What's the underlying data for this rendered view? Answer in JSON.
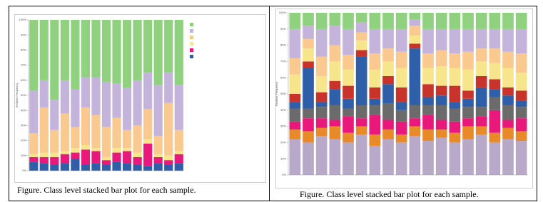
{
  "figure_captions": [
    "Figure. Class level stacked bar plot for each sample.",
    "Figure. Class level stacked bar plot for each sample."
  ],
  "chart_data": [
    {
      "type": "stacked-bar",
      "y_label": "Relative Frequency",
      "categories": [
        null,
        null,
        null,
        null,
        null,
        null,
        null,
        null,
        null,
        null,
        null,
        null,
        null,
        null,
        null
      ],
      "ylim": [
        0,
        100
      ],
      "yticks": [
        {
          "value": 0,
          "label": "0%"
        },
        {
          "value": 10,
          "label": "10%"
        },
        {
          "value": 20,
          "label": "20%"
        },
        {
          "value": 30,
          "label": "30%"
        },
        {
          "value": 40,
          "label": "40%"
        },
        {
          "value": 50,
          "label": "50%"
        },
        {
          "value": 60,
          "label": "60%"
        },
        {
          "value": 70,
          "label": "70%"
        },
        {
          "value": 80,
          "label": "80%"
        },
        {
          "value": 90,
          "label": "90%"
        },
        {
          "value": 100,
          "label": "100%"
        }
      ],
      "legend": "right",
      "series": [
        {
          "name": null,
          "color": "#2e5fa8",
          "values": [
            6,
            5,
            4,
            5,
            8,
            4,
            5,
            4,
            6,
            5,
            4,
            3,
            5,
            4,
            5
          ]
        },
        {
          "name": null,
          "color": "#e8197a",
          "values": [
            3,
            4,
            5,
            6,
            4,
            10,
            8,
            3,
            6,
            8,
            5,
            15,
            4,
            3,
            6
          ]
        },
        {
          "name": null,
          "color": "#f6e58a",
          "values": [
            2,
            3,
            3,
            2,
            3,
            3,
            2,
            2,
            3,
            2,
            3,
            3,
            2,
            3,
            2
          ]
        },
        {
          "name": null,
          "color": "#f9c98f",
          "values": [
            14,
            30,
            15,
            25,
            14,
            25,
            22,
            20,
            20,
            12,
            18,
            20,
            12,
            35,
            14
          ]
        },
        {
          "name": null,
          "color": "#c4b3db",
          "values": [
            28,
            18,
            20,
            22,
            25,
            20,
            25,
            30,
            23,
            28,
            30,
            24,
            34,
            20,
            30
          ]
        },
        {
          "name": null,
          "color": "#8fd17e",
          "values": [
            47,
            40,
            53,
            40,
            46,
            38,
            38,
            41,
            42,
            45,
            40,
            35,
            43,
            35,
            43
          ]
        }
      ]
    },
    {
      "type": "stacked-bar",
      "y_label": "Relative Frequency",
      "categories": [
        null,
        null,
        null,
        null,
        null,
        null,
        null,
        null,
        null,
        null,
        null,
        null,
        null,
        null,
        null,
        null,
        null,
        null
      ],
      "ylim": [
        0,
        100
      ],
      "yticks": [
        {
          "value": 0,
          "label": "0%"
        },
        {
          "value": 10,
          "label": "10%"
        },
        {
          "value": 20,
          "label": "20%"
        },
        {
          "value": 30,
          "label": "30%"
        },
        {
          "value": 40,
          "label": "40%"
        },
        {
          "value": 50,
          "label": "50%"
        },
        {
          "value": 60,
          "label": "60%"
        },
        {
          "value": 70,
          "label": "70%"
        },
        {
          "value": 80,
          "label": "80%"
        },
        {
          "value": 90,
          "label": "90%"
        },
        {
          "value": 100,
          "label": "100%"
        }
      ],
      "series": [
        {
          "name": null,
          "color": "#b9a9c9",
          "values": [
            22,
            20,
            24,
            22,
            20,
            25,
            18,
            22,
            20,
            24,
            21,
            23,
            20,
            22,
            25,
            20,
            22,
            21
          ]
        },
        {
          "name": null,
          "color": "#e8892a",
          "values": [
            6,
            7,
            5,
            8,
            6,
            5,
            7,
            6,
            5,
            6,
            7,
            5,
            6,
            8,
            5,
            6,
            7,
            6
          ]
        },
        {
          "name": null,
          "color": "#e8197a",
          "values": [
            5,
            8,
            6,
            4,
            10,
            5,
            12,
            6,
            8,
            5,
            9,
            6,
            7,
            5,
            6,
            14,
            5,
            8
          ]
        },
        {
          "name": null,
          "color": "#6b6b6b",
          "values": [
            8,
            6,
            7,
            9,
            5,
            8,
            6,
            10,
            7,
            8,
            6,
            9,
            8,
            7,
            6,
            8,
            9,
            7
          ]
        },
        {
          "name": null,
          "color": "#2e5fa8",
          "values": [
            4,
            25,
            3,
            10,
            6,
            30,
            4,
            12,
            5,
            35,
            5,
            6,
            4,
            5,
            12,
            5,
            6,
            4
          ]
        },
        {
          "name": null,
          "color": "#c8342c",
          "values": [
            5,
            4,
            6,
            5,
            8,
            4,
            7,
            5,
            9,
            3,
            8,
            6,
            10,
            5,
            7,
            6,
            5,
            6
          ]
        },
        {
          "name": null,
          "color": "#f6e58a",
          "values": [
            12,
            8,
            10,
            12,
            10,
            6,
            11,
            9,
            12,
            5,
            10,
            12,
            11,
            13,
            9,
            10,
            12,
            11
          ]
        },
        {
          "name": null,
          "color": "#f9c98f",
          "values": [
            10,
            6,
            12,
            10,
            9,
            5,
            10,
            8,
            10,
            6,
            9,
            10,
            9,
            11,
            8,
            9,
            10,
            12
          ]
        },
        {
          "name": null,
          "color": "#c4b3db",
          "values": [
            18,
            8,
            17,
            12,
            16,
            6,
            15,
            12,
            14,
            4,
            15,
            13,
            15,
            14,
            12,
            12,
            14,
            15
          ]
        },
        {
          "name": null,
          "color": "#8fd17e",
          "values": [
            10,
            8,
            10,
            8,
            10,
            6,
            10,
            10,
            10,
            4,
            10,
            10,
            10,
            10,
            10,
            10,
            10,
            10
          ]
        }
      ]
    }
  ]
}
